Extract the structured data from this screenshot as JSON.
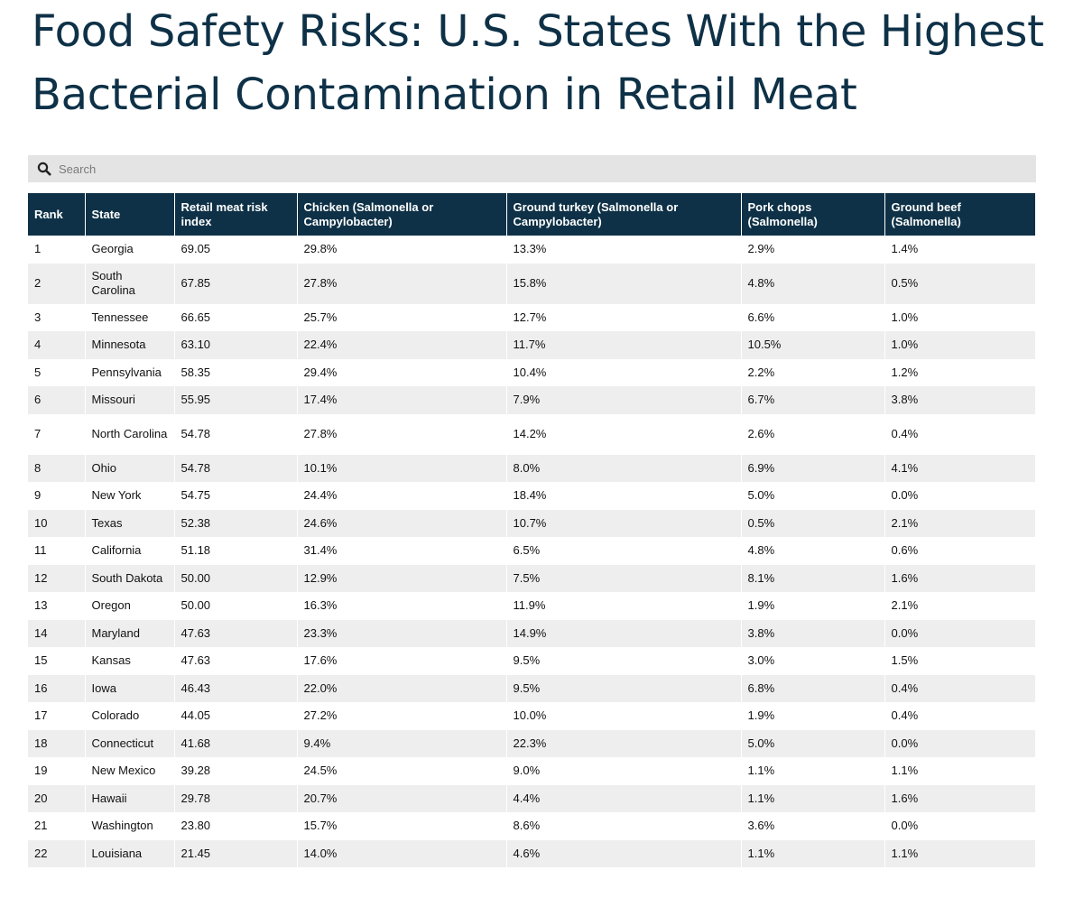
{
  "page": {
    "title": "Food Safety Risks: U.S. States With the Highest Bacterial Contamination in Retail Meat"
  },
  "search": {
    "placeholder": "Search",
    "icon": "search-icon"
  },
  "colors": {
    "header_bg": "#0e3147",
    "title_color": "#0e3147",
    "stripe": "#eeeeee",
    "search_bg": "#e4e4e4"
  },
  "table": {
    "columns": [
      "Rank",
      "State",
      "Retail meat risk index",
      "Chicken (Salmonella or Campylobacter)",
      "Ground turkey (Salmonella or Campylobacter)",
      "Pork chops (Salmonella)",
      "Ground beef (Salmonella)"
    ],
    "rows": [
      [
        "1",
        "Georgia",
        "69.05",
        "29.8%",
        "13.3%",
        "2.9%",
        "1.4%"
      ],
      [
        "2",
        "South Carolina",
        "67.85",
        "27.8%",
        "15.8%",
        "4.8%",
        "0.5%"
      ],
      [
        "3",
        "Tennessee",
        "66.65",
        "25.7%",
        "12.7%",
        "6.6%",
        "1.0%"
      ],
      [
        "4",
        "Minnesota",
        "63.10",
        "22.4%",
        "11.7%",
        "10.5%",
        "1.0%"
      ],
      [
        "5",
        "Pennsylvania",
        "58.35",
        "29.4%",
        "10.4%",
        "2.2%",
        "1.2%"
      ],
      [
        "6",
        "Missouri",
        "55.95",
        "17.4%",
        "7.9%",
        "6.7%",
        "3.8%"
      ],
      [
        "7",
        "North Carolina",
        "54.78",
        "27.8%",
        "14.2%",
        "2.6%",
        "0.4%"
      ],
      [
        "8",
        "Ohio",
        "54.78",
        "10.1%",
        "8.0%",
        "6.9%",
        "4.1%"
      ],
      [
        "9",
        "New York",
        "54.75",
        "24.4%",
        "18.4%",
        "5.0%",
        "0.0%"
      ],
      [
        "10",
        "Texas",
        "52.38",
        "24.6%",
        "10.7%",
        "0.5%",
        "2.1%"
      ],
      [
        "11",
        "California",
        "51.18",
        "31.4%",
        "6.5%",
        "4.8%",
        "0.6%"
      ],
      [
        "12",
        "South Dakota",
        "50.00",
        "12.9%",
        "7.5%",
        "8.1%",
        "1.6%"
      ],
      [
        "13",
        "Oregon",
        "50.00",
        "16.3%",
        "11.9%",
        "1.9%",
        "2.1%"
      ],
      [
        "14",
        "Maryland",
        "47.63",
        "23.3%",
        "14.9%",
        "3.8%",
        "0.0%"
      ],
      [
        "15",
        "Kansas",
        "47.63",
        "17.6%",
        "9.5%",
        "3.0%",
        "1.5%"
      ],
      [
        "16",
        "Iowa",
        "46.43",
        "22.0%",
        "9.5%",
        "6.8%",
        "0.4%"
      ],
      [
        "17",
        "Colorado",
        "44.05",
        "27.2%",
        "10.0%",
        "1.9%",
        "0.4%"
      ],
      [
        "18",
        "Connecticut",
        "41.68",
        "9.4%",
        "22.3%",
        "5.0%",
        "0.0%"
      ],
      [
        "19",
        "New Mexico",
        "39.28",
        "24.5%",
        "9.0%",
        "1.1%",
        "1.1%"
      ],
      [
        "20",
        "Hawaii",
        "29.78",
        "20.7%",
        "4.4%",
        "1.1%",
        "1.6%"
      ],
      [
        "21",
        "Washington",
        "23.80",
        "15.7%",
        "8.6%",
        "3.6%",
        "0.0%"
      ],
      [
        "22",
        "Louisiana",
        "21.45",
        "14.0%",
        "4.6%",
        "1.1%",
        "1.1%"
      ]
    ]
  }
}
